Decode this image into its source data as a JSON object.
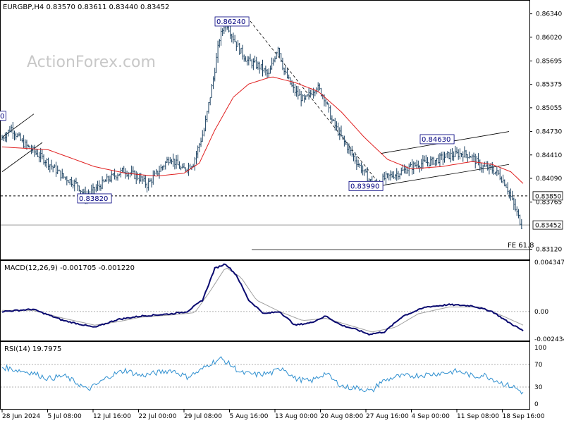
{
  "header": {
    "symbol_line": "EURGBP,H4  0.83570 0.83611 0.83440 0.83452",
    "watermark": "ActionForex.com"
  },
  "colors": {
    "candles": "#1a4060",
    "ma": "#e02020",
    "macd": "#0a0a70",
    "signal": "#a0a0a0",
    "rsi": "#3090d0",
    "trendline": "#000000",
    "label_text": "#00007f"
  },
  "chart_data": [
    {
      "type": "candlestick",
      "title": "EURGBP,H4",
      "last_quote": {
        "open": 0.8357,
        "high": 0.83611,
        "low": 0.8344,
        "close": 0.83452
      },
      "ylim": [
        0.83,
        0.865
      ],
      "y_ticks": [
        "0.86340",
        "0.86020",
        "0.85695",
        "0.85375",
        "0.85055",
        "0.84730",
        "0.84410",
        "0.84090",
        "0.83765",
        "0.83120"
      ],
      "x_ticks": [
        "28 Jun 2024",
        "5 Jul 08:00",
        "12 Jul 16:00",
        "22 Jul 00:00",
        "29 Jul 08:00",
        "5 Aug 16:00",
        "13 Aug 00:00",
        "20 Aug 08:00",
        "27 Aug 16:00",
        "4 Sep 00:00",
        "11 Sep 08:00",
        "18 Sep 16:00"
      ],
      "close_path": [
        [
          0,
          0.8462
        ],
        [
          7,
          0.8478
        ],
        [
          14,
          0.8458
        ],
        [
          22,
          0.8445
        ],
        [
          30,
          0.8432
        ],
        [
          40,
          0.8412
        ],
        [
          50,
          0.84
        ],
        [
          55,
          0.8383
        ],
        [
          60,
          0.8392
        ],
        [
          70,
          0.8408
        ],
        [
          80,
          0.842
        ],
        [
          90,
          0.841
        ],
        [
          95,
          0.84
        ],
        [
          105,
          0.8425
        ],
        [
          110,
          0.8438
        ],
        [
          118,
          0.842
        ],
        [
          125,
          0.843
        ],
        [
          132,
          0.8475
        ],
        [
          138,
          0.8545
        ],
        [
          142,
          0.86
        ],
        [
          146,
          0.8624
        ],
        [
          150,
          0.8605
        ],
        [
          155,
          0.8585
        ],
        [
          160,
          0.857
        ],
        [
          168,
          0.8562
        ],
        [
          174,
          0.855
        ],
        [
          180,
          0.859
        ],
        [
          184,
          0.8555
        ],
        [
          190,
          0.853
        ],
        [
          197,
          0.8515
        ],
        [
          205,
          0.8535
        ],
        [
          210,
          0.852
        ],
        [
          215,
          0.8488
        ],
        [
          222,
          0.8462
        ],
        [
          230,
          0.8435
        ],
        [
          238,
          0.841
        ],
        [
          242,
          0.8399
        ],
        [
          250,
          0.841
        ],
        [
          260,
          0.8418
        ],
        [
          270,
          0.8428
        ],
        [
          280,
          0.8432
        ],
        [
          290,
          0.844
        ],
        [
          300,
          0.8443
        ],
        [
          305,
          0.844
        ],
        [
          312,
          0.8425
        ],
        [
          318,
          0.8422
        ],
        [
          323,
          0.8415
        ],
        [
          328,
          0.84
        ],
        [
          333,
          0.8372
        ],
        [
          338,
          0.8345
        ]
      ],
      "ma_path": [
        [
          0,
          0.8452
        ],
        [
          30,
          0.8448
        ],
        [
          60,
          0.8425
        ],
        [
          80,
          0.8416
        ],
        [
          100,
          0.8412
        ],
        [
          118,
          0.8416
        ],
        [
          128,
          0.843
        ],
        [
          138,
          0.8475
        ],
        [
          150,
          0.852
        ],
        [
          160,
          0.8538
        ],
        [
          175,
          0.8548
        ],
        [
          190,
          0.854
        ],
        [
          205,
          0.8528
        ],
        [
          220,
          0.85
        ],
        [
          235,
          0.8465
        ],
        [
          250,
          0.8435
        ],
        [
          265,
          0.8422
        ],
        [
          285,
          0.8425
        ],
        [
          305,
          0.8432
        ],
        [
          318,
          0.8428
        ],
        [
          330,
          0.8418
        ],
        [
          338,
          0.8402
        ]
      ],
      "n_bars": 338,
      "hlines": [
        {
          "value": 0.8385,
          "label": "0.83850",
          "style": "dashed"
        },
        {
          "value": 0.83452,
          "label": "0.83452",
          "style": "solid-gray"
        }
      ],
      "fe_label": "FE 61.8",
      "annotations": [
        "0.86240",
        "0.84630",
        "0.83990",
        "0.83820",
        "0"
      ]
    },
    {
      "type": "line",
      "title": "MACD(12,26,9) -0.001705 -0.001220",
      "ylim": [
        -0.00243,
        0.00434
      ],
      "y_ticks": [
        "0.004347",
        "0.00",
        "-0.002434"
      ],
      "series": [
        {
          "name": "MACD",
          "path": [
            [
              0,
              -0.0
            ],
            [
              20,
              0.0002
            ],
            [
              40,
              -0.0008
            ],
            [
              60,
              -0.0014
            ],
            [
              75,
              -0.0007
            ],
            [
              90,
              -0.0004
            ],
            [
              100,
              -0.0003
            ],
            [
              110,
              -0.0002
            ],
            [
              120,
              0.0
            ],
            [
              130,
              0.001
            ],
            [
              138,
              0.0038
            ],
            [
              145,
              0.0042
            ],
            [
              152,
              0.0032
            ],
            [
              160,
              0.001
            ],
            [
              170,
              -0.0002
            ],
            [
              180,
              0.0
            ],
            [
              190,
              -0.0012
            ],
            [
              200,
              -0.001
            ],
            [
              210,
              -0.0004
            ],
            [
              220,
              -0.0012
            ],
            [
              230,
              -0.0016
            ],
            [
              238,
              -0.002
            ],
            [
              248,
              -0.0018
            ],
            [
              260,
              -0.0004
            ],
            [
              275,
              0.0004
            ],
            [
              290,
              0.0006
            ],
            [
              305,
              0.0005
            ],
            [
              318,
              0.0
            ],
            [
              328,
              -0.0009
            ],
            [
              338,
              -0.0017
            ]
          ]
        },
        {
          "name": "Signal",
          "path": [
            [
              0,
              0.0001
            ],
            [
              20,
              0.0001
            ],
            [
              40,
              -0.0006
            ],
            [
              60,
              -0.0012
            ],
            [
              75,
              -0.0009
            ],
            [
              90,
              -0.0005
            ],
            [
              110,
              -0.0003
            ],
            [
              125,
              -0.0001
            ],
            [
              135,
              0.0018
            ],
            [
              145,
              0.0039
            ],
            [
              155,
              0.003
            ],
            [
              165,
              0.001
            ],
            [
              180,
              0.0
            ],
            [
              195,
              -0.0008
            ],
            [
              210,
              -0.0006
            ],
            [
              225,
              -0.0012
            ],
            [
              240,
              -0.0018
            ],
            [
              255,
              -0.0014
            ],
            [
              270,
              -0.0002
            ],
            [
              290,
              0.0004
            ],
            [
              310,
              0.0004
            ],
            [
              325,
              -0.0004
            ],
            [
              338,
              -0.0012
            ]
          ]
        }
      ]
    },
    {
      "type": "line",
      "title": "RSI(14) 19.7975",
      "ylim": [
        0,
        100
      ],
      "y_ticks": [
        "100",
        "70",
        "30",
        "0"
      ],
      "levels": [
        70,
        30
      ],
      "series": [
        {
          "name": "RSI",
          "path": [
            [
              0,
              65
            ],
            [
              10,
              60
            ],
            [
              20,
              55
            ],
            [
              30,
              45
            ],
            [
              40,
              50
            ],
            [
              50,
              35
            ],
            [
              55,
              25
            ],
            [
              60,
              32
            ],
            [
              70,
              50
            ],
            [
              80,
              60
            ],
            [
              90,
              50
            ],
            [
              100,
              55
            ],
            [
              110,
              60
            ],
            [
              120,
              48
            ],
            [
              128,
              58
            ],
            [
              135,
              72
            ],
            [
              142,
              80
            ],
            [
              148,
              70
            ],
            [
              155,
              55
            ],
            [
              165,
              52
            ],
            [
              175,
              55
            ],
            [
              182,
              65
            ],
            [
              190,
              45
            ],
            [
              200,
              40
            ],
            [
              210,
              55
            ],
            [
              215,
              42
            ],
            [
              222,
              30
            ],
            [
              232,
              28
            ],
            [
              240,
              22
            ],
            [
              245,
              38
            ],
            [
              255,
              48
            ],
            [
              265,
              50
            ],
            [
              275,
              52
            ],
            [
              285,
              55
            ],
            [
              295,
              58
            ],
            [
              300,
              55
            ],
            [
              306,
              48
            ],
            [
              312,
              52
            ],
            [
              318,
              45
            ],
            [
              326,
              35
            ],
            [
              332,
              30
            ],
            [
              338,
              20
            ]
          ]
        }
      ]
    }
  ]
}
